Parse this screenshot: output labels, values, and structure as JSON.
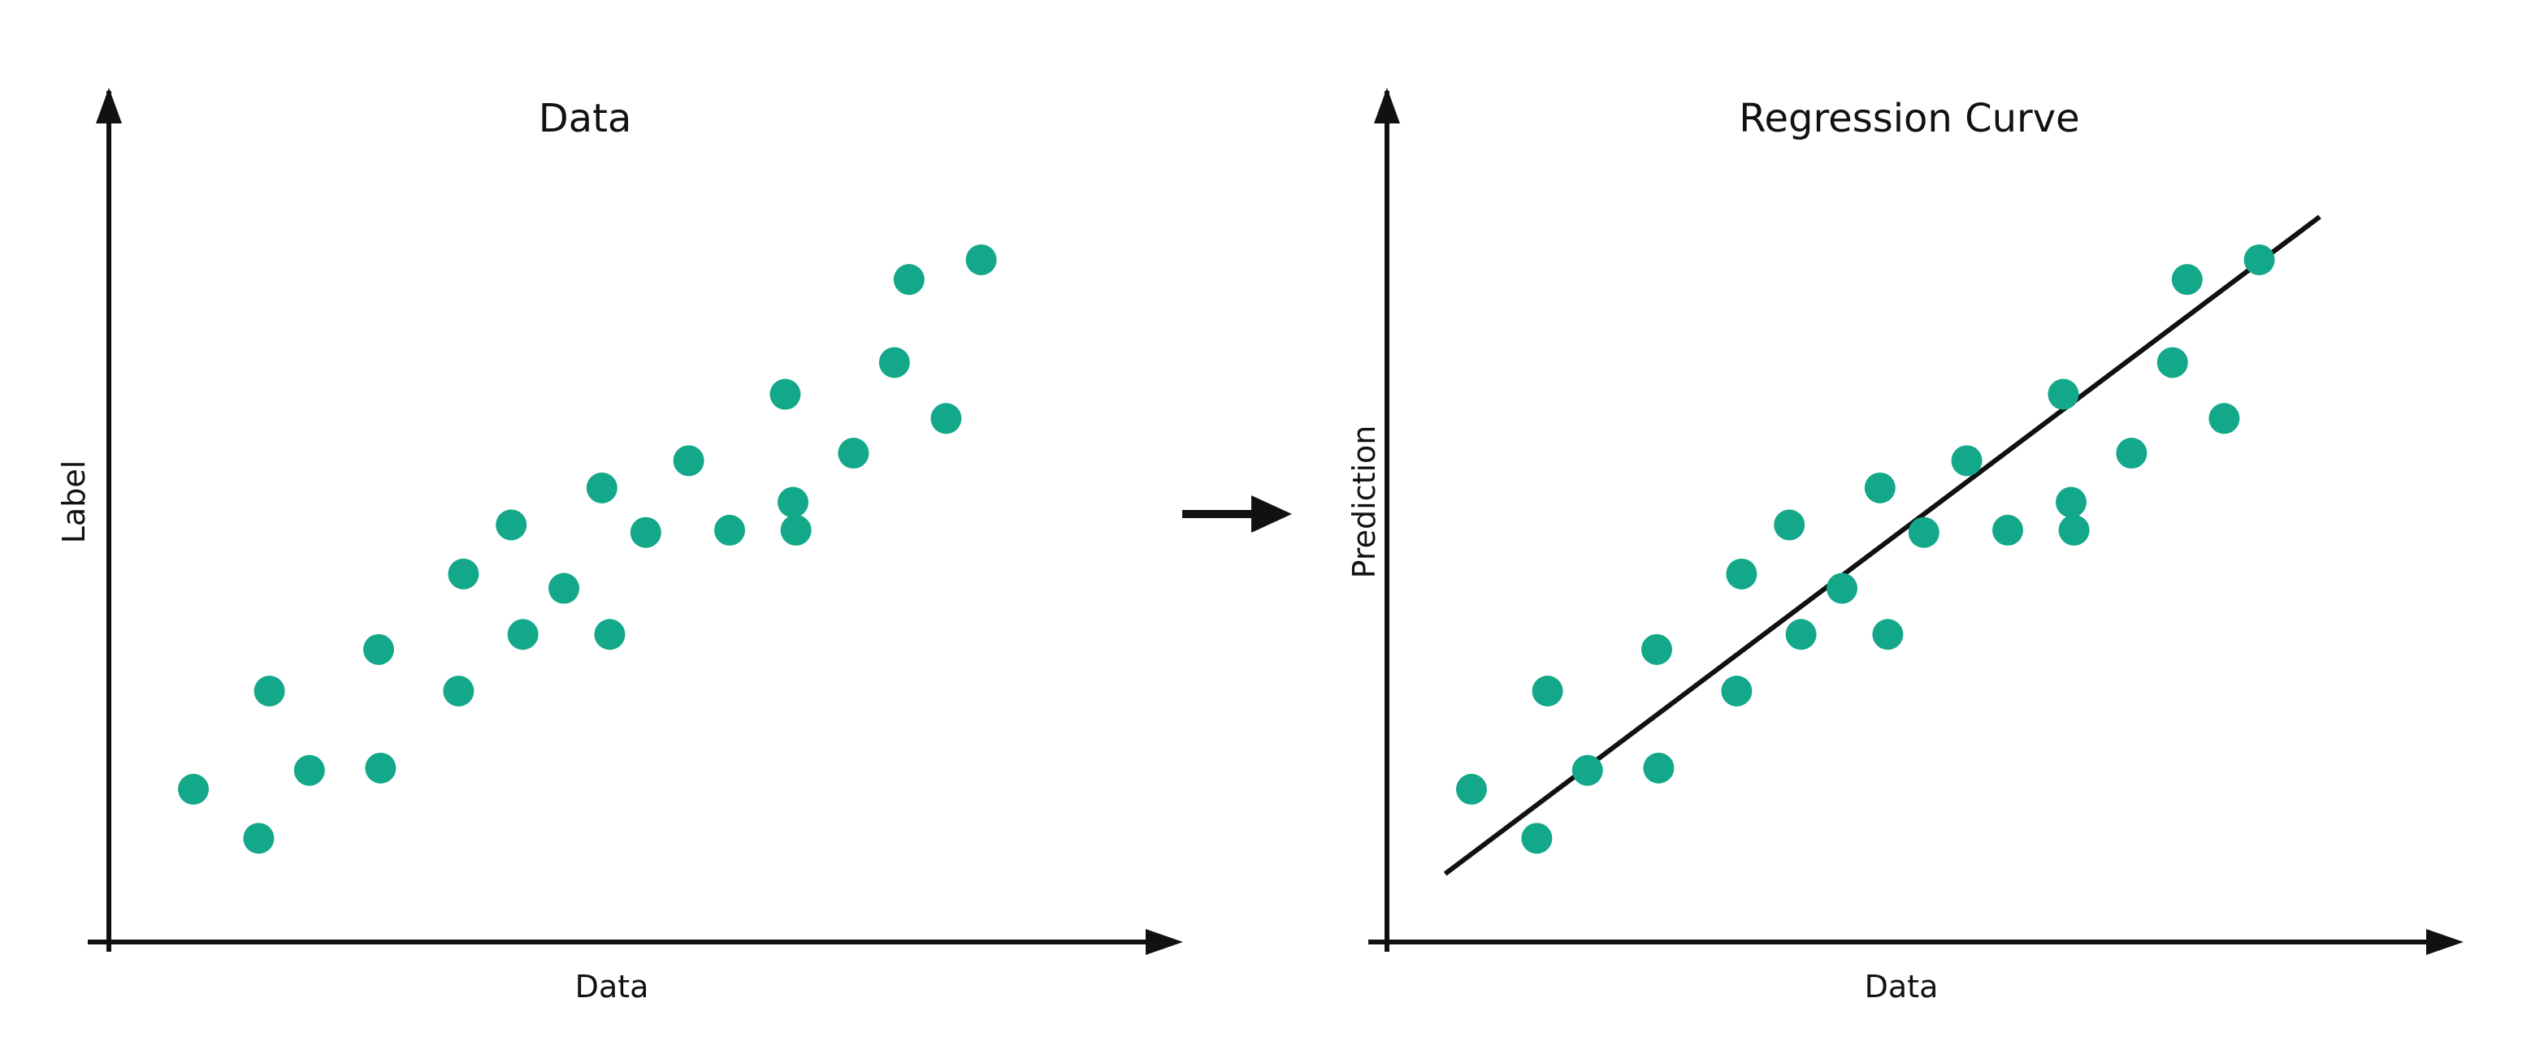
{
  "colors": {
    "point": "#13A88A",
    "line": "#111111",
    "axis": "#111111",
    "background": "#ffffff"
  },
  "arrow_icon": "right-arrow-icon",
  "chart_data": [
    {
      "type": "scatter",
      "title": "Data",
      "xlabel": "Data",
      "ylabel": "Label",
      "grid": false,
      "xlim": [
        0,
        100
      ],
      "ylim": [
        0,
        100
      ],
      "series": [
        {
          "x": [
            6.5,
            13.2,
            14.3,
            18.4,
            25.5,
            25.7,
            33.7,
            34.2,
            39.1,
            40.3,
            44.5,
            48.4,
            49.2,
            52.9,
            57.3,
            61.5,
            67.2,
            68.0,
            68.3,
            74.2,
            78.4,
            79.9,
            83.7,
            87.3
          ],
          "y": [
            17.0,
            10.5,
            30.0,
            19.5,
            35.5,
            19.8,
            30.0,
            45.5,
            52.0,
            37.5,
            43.6,
            56.9,
            37.5,
            51.0,
            60.5,
            51.3,
            69.3,
            55.0,
            51.3,
            61.5,
            73.5,
            84.5,
            66.1,
            87.1
          ]
        }
      ]
    },
    {
      "type": "scatter",
      "title": "Regression Curve",
      "xlabel": "Data",
      "ylabel": "Prediction",
      "grid": false,
      "xlim": [
        0,
        100
      ],
      "ylim": [
        0,
        100
      ],
      "series": [
        {
          "x": [
            6.5,
            13.2,
            14.3,
            18.4,
            25.5,
            25.7,
            33.7,
            34.2,
            39.1,
            40.3,
            44.5,
            48.4,
            49.2,
            52.9,
            57.3,
            61.5,
            67.2,
            68.0,
            68.3,
            74.2,
            78.4,
            79.9,
            83.7,
            87.3
          ],
          "y": [
            17.0,
            10.5,
            30.0,
            19.5,
            35.5,
            19.8,
            30.0,
            45.5,
            52.0,
            37.5,
            43.6,
            56.9,
            37.5,
            51.0,
            60.5,
            51.3,
            69.3,
            55.0,
            51.3,
            61.5,
            73.5,
            84.5,
            66.1,
            87.1
          ]
        },
        {
          "type": "line",
          "x": [
            3.8,
            93.5
          ],
          "y": [
            5.8,
            92.8
          ]
        }
      ]
    }
  ]
}
